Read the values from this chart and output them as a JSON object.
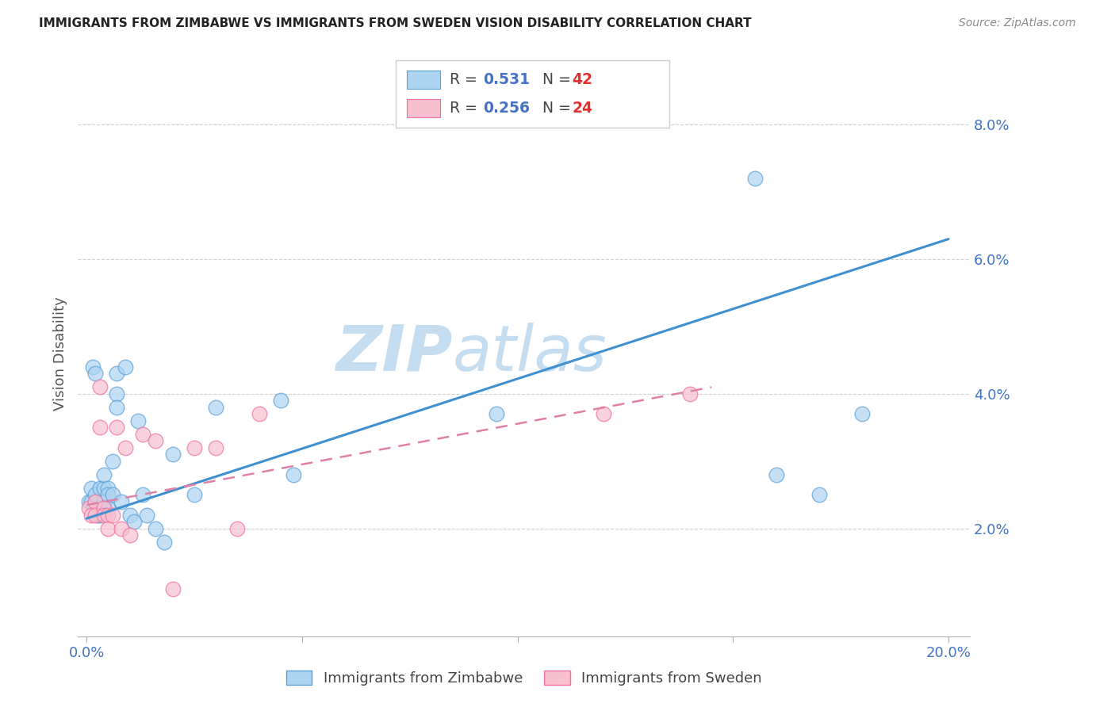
{
  "title": "IMMIGRANTS FROM ZIMBABWE VS IMMIGRANTS FROM SWEDEN VISION DISABILITY CORRELATION CHART",
  "source": "Source: ZipAtlas.com",
  "ylabel": "Vision Disability",
  "ytick_labels": [
    "2.0%",
    "4.0%",
    "6.0%",
    "8.0%"
  ],
  "ytick_values": [
    0.02,
    0.04,
    0.06,
    0.08
  ],
  "xlim": [
    -0.002,
    0.205
  ],
  "ylim": [
    0.004,
    0.088
  ],
  "legend_r1": "0.531",
  "legend_n1": "42",
  "legend_r2": "0.256",
  "legend_n2": "24",
  "blue_color": "#add4f0",
  "pink_color": "#f9c0d0",
  "blue_edge": "#5aa0d8",
  "pink_edge": "#f070a0",
  "line_blue": "#4090d0",
  "line_pink": "#e080a8",
  "watermark_zip": "ZIP",
  "watermark_atlas": "atlas",
  "blue_scatter_x": [
    0.0005,
    0.001,
    0.001,
    0.0015,
    0.002,
    0.002,
    0.0025,
    0.003,
    0.003,
    0.003,
    0.003,
    0.004,
    0.004,
    0.004,
    0.004,
    0.005,
    0.005,
    0.005,
    0.006,
    0.006,
    0.007,
    0.007,
    0.007,
    0.008,
    0.009,
    0.01,
    0.011,
    0.012,
    0.013,
    0.014,
    0.016,
    0.018,
    0.02,
    0.025,
    0.03,
    0.045,
    0.048,
    0.095,
    0.155,
    0.16,
    0.17,
    0.18
  ],
  "blue_scatter_y": [
    0.024,
    0.024,
    0.026,
    0.044,
    0.043,
    0.025,
    0.022,
    0.023,
    0.026,
    0.022,
    0.023,
    0.026,
    0.028,
    0.024,
    0.023,
    0.026,
    0.025,
    0.023,
    0.03,
    0.025,
    0.043,
    0.04,
    0.038,
    0.024,
    0.044,
    0.022,
    0.021,
    0.036,
    0.025,
    0.022,
    0.02,
    0.018,
    0.031,
    0.025,
    0.038,
    0.039,
    0.028,
    0.037,
    0.072,
    0.028,
    0.025,
    0.037
  ],
  "pink_scatter_x": [
    0.0005,
    0.001,
    0.002,
    0.002,
    0.003,
    0.003,
    0.004,
    0.004,
    0.005,
    0.005,
    0.006,
    0.007,
    0.008,
    0.009,
    0.01,
    0.013,
    0.016,
    0.02,
    0.025,
    0.03,
    0.035,
    0.04,
    0.12,
    0.14
  ],
  "pink_scatter_y": [
    0.023,
    0.022,
    0.024,
    0.022,
    0.041,
    0.035,
    0.023,
    0.022,
    0.022,
    0.02,
    0.022,
    0.035,
    0.02,
    0.032,
    0.019,
    0.034,
    0.033,
    0.011,
    0.032,
    0.032,
    0.02,
    0.037,
    0.037,
    0.04
  ],
  "blue_line_x": [
    0.0,
    0.2
  ],
  "blue_line_y": [
    0.0215,
    0.063
  ],
  "pink_line_x": [
    0.0,
    0.145
  ],
  "pink_line_y": [
    0.0235,
    0.041
  ]
}
